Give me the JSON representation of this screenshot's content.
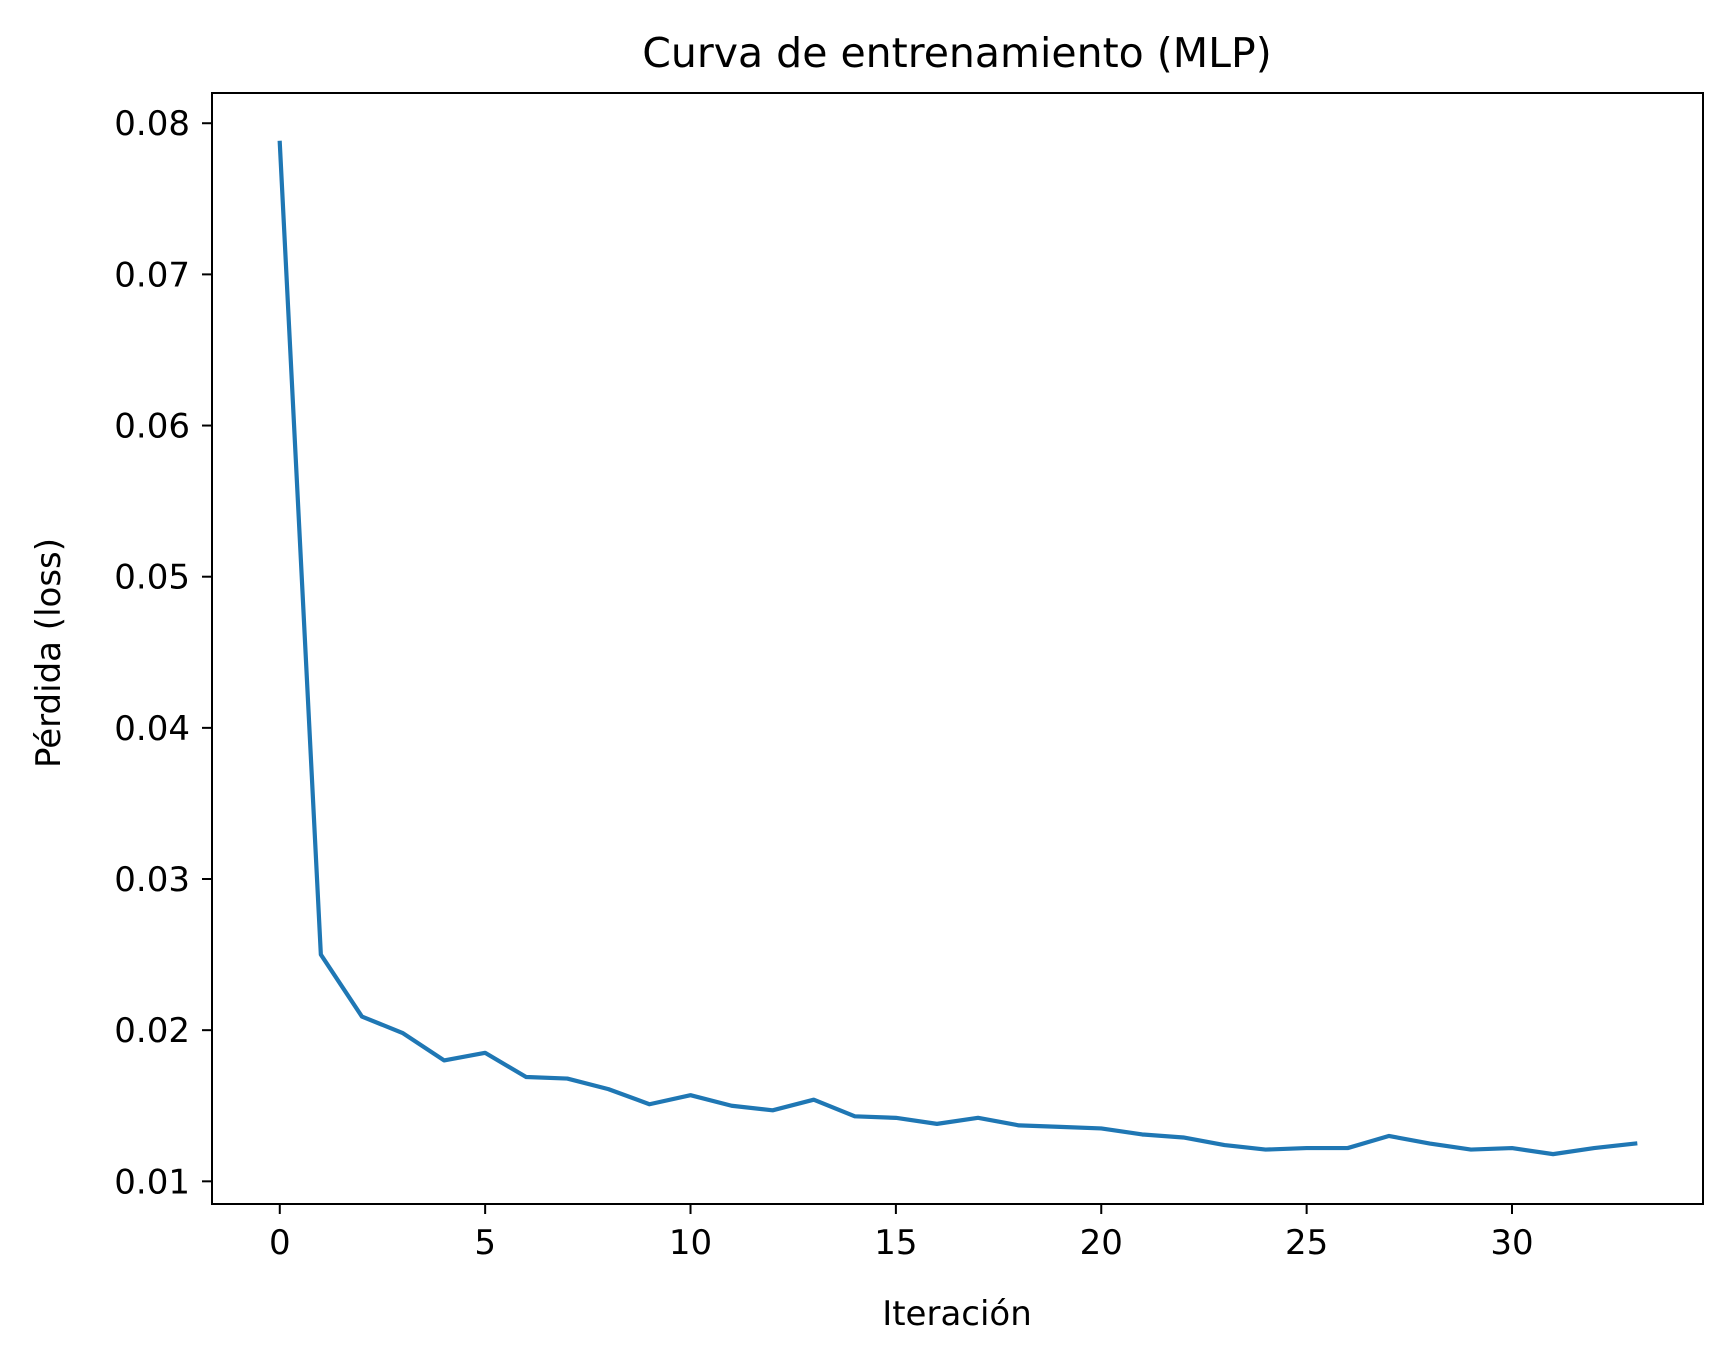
{
  "chart_data": {
    "type": "line",
    "title": "Curva de entrenamiento (MLP)",
    "xlabel": "Iteración",
    "ylabel": "Pérdida (loss)",
    "xlim": [
      -1.65,
      34.65
    ],
    "ylim": [
      0.0085,
      0.082
    ],
    "xticks": [
      0,
      5,
      10,
      15,
      20,
      25,
      30
    ],
    "xtick_labels": [
      "0",
      "5",
      "10",
      "15",
      "20",
      "25",
      "30"
    ],
    "yticks": [
      0.01,
      0.02,
      0.03,
      0.04,
      0.05,
      0.06,
      0.07,
      0.08
    ],
    "ytick_labels": [
      "0.01",
      "0.02",
      "0.03",
      "0.04",
      "0.05",
      "0.06",
      "0.07",
      "0.08"
    ],
    "grid": false,
    "colors": {
      "line": "#1f77b4",
      "axes": "#000000",
      "background": "#ffffff"
    },
    "series": [
      {
        "x": [
          0,
          1,
          2,
          3,
          4,
          5,
          6,
          7,
          8,
          9,
          10,
          11,
          12,
          13,
          14,
          15,
          16,
          17,
          18,
          19,
          20,
          21,
          22,
          23,
          24,
          25,
          26,
          27,
          28,
          29,
          30,
          31,
          32,
          33
        ],
        "values": [
          0.0787,
          0.025,
          0.0209,
          0.0198,
          0.018,
          0.0185,
          0.0169,
          0.0168,
          0.0161,
          0.0151,
          0.0157,
          0.015,
          0.0147,
          0.0154,
          0.0143,
          0.0142,
          0.0138,
          0.0142,
          0.0137,
          0.0136,
          0.0135,
          0.0131,
          0.0129,
          0.0124,
          0.0121,
          0.0122,
          0.0122,
          0.013,
          0.0125,
          0.0121,
          0.0122,
          0.0118,
          0.0122,
          0.0125
        ]
      }
    ]
  }
}
